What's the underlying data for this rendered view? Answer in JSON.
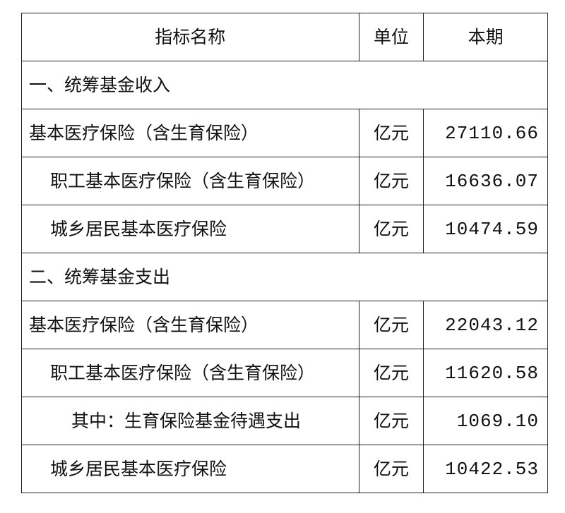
{
  "table": {
    "headers": [
      "指标名称",
      "单位",
      "本期"
    ],
    "rows": [
      {
        "type": "section",
        "name": "一、统筹基金收入"
      },
      {
        "type": "data",
        "level": 0,
        "name": "基本医疗保险（含生育保险）",
        "unit": "亿元",
        "value": "27110.66"
      },
      {
        "type": "data",
        "level": 1,
        "name": "职工基本医疗保险（含生育保险）",
        "unit": "亿元",
        "value": "16636.07"
      },
      {
        "type": "data",
        "level": 1,
        "name": "城乡居民基本医疗保险",
        "unit": "亿元",
        "value": "10474.59"
      },
      {
        "type": "section",
        "name": "二、统筹基金支出"
      },
      {
        "type": "data",
        "level": 0,
        "name": "基本医疗保险（含生育保险）",
        "unit": "亿元",
        "value": "22043.12"
      },
      {
        "type": "data",
        "level": 1,
        "name": "职工基本医疗保险（含生育保险）",
        "unit": "亿元",
        "value": "11620.58"
      },
      {
        "type": "data",
        "level": 2,
        "name": "其中：生育保险基金待遇支出",
        "unit": "亿元",
        "value": "1069.10"
      },
      {
        "type": "data",
        "level": 1,
        "name": "城乡居民基本医疗保险",
        "unit": "亿元",
        "value": "10422.53"
      }
    ]
  }
}
